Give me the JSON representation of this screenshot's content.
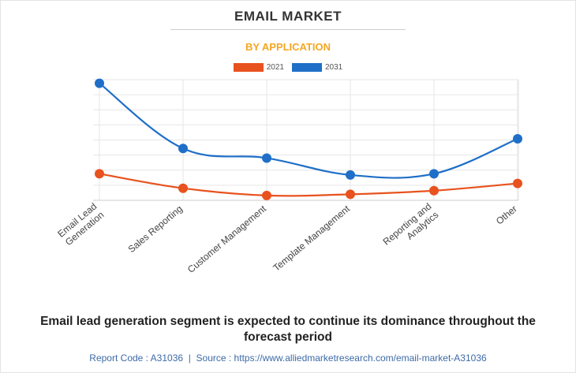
{
  "header": {
    "title": "EMAIL MARKET",
    "subtitle": "BY APPLICATION"
  },
  "caption": "Email lead generation segment is expected to continue its dominance throughout the forecast period",
  "footer": {
    "report_code_label": "Report Code : A31036",
    "separator": "|",
    "source_label": "Source : https://www.alliedmarketresearch.com/email-market-A31036"
  },
  "colors": {
    "series_2021": "#e8521e",
    "series_2031": "#1f6fc8",
    "subtitle": "#f5a623",
    "grid": "#e6e6e6"
  },
  "chart_data": {
    "type": "line",
    "title": "EMAIL MARKET",
    "subtitle": "BY APPLICATION",
    "xlabel": "",
    "ylabel": "",
    "categories": [
      [
        "Email Lead",
        "Generation"
      ],
      [
        "Sales Reporting"
      ],
      [
        "Customer Management"
      ],
      [
        "Template Management"
      ],
      [
        "Reporting and",
        "Analytics"
      ],
      [
        "Other"
      ]
    ],
    "series": [
      {
        "name": "2021",
        "values": [
          2.2,
          1.0,
          0.4,
          0.5,
          0.8,
          1.4
        ]
      },
      {
        "name": "2031",
        "values": [
          9.7,
          4.3,
          3.5,
          2.1,
          2.2,
          5.1
        ]
      }
    ],
    "ylim": [
      0,
      10
    ],
    "y_ticks_labeled": false,
    "grid": true,
    "smooth": true,
    "legend_position": "top-center"
  }
}
